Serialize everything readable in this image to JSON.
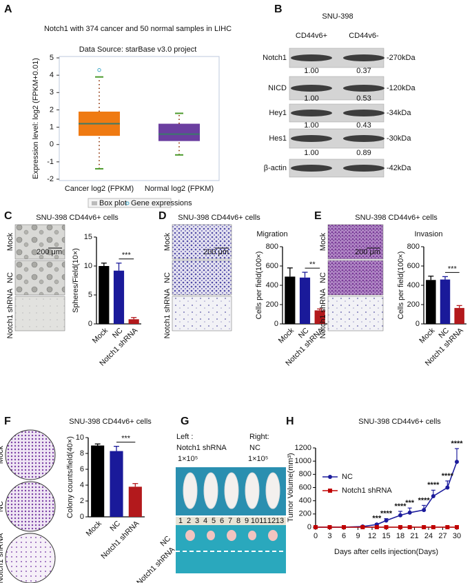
{
  "panel_labels": [
    "A",
    "B",
    "C",
    "D",
    "E",
    "F",
    "G",
    "H"
  ],
  "chart_data": [
    {
      "type": "box",
      "title": "Notch1 with 374 cancer and 50 normal samples in LIHC",
      "subtitle": "Data Source: starBase v3.0 project",
      "ylabel": "Expression level: log2 (FPKM+0.01)",
      "categories": [
        "Cancer log2 (FPKM)",
        "Normal log2 (FPKM)"
      ],
      "boxes": [
        {
          "low": -1.4,
          "q1": 0.5,
          "median": 1.2,
          "q3": 1.9,
          "high": 3.9,
          "color": "#ef7a12"
        },
        {
          "low": -0.6,
          "q1": 0.2,
          "median": 0.6,
          "q3": 1.2,
          "high": 1.8,
          "color": "#6b3fa0"
        }
      ],
      "outliers": [
        [
          4.3
        ],
        []
      ],
      "ylim": [
        -2,
        5
      ],
      "yticks": [
        -2,
        -1,
        0,
        1,
        2,
        3,
        4,
        5
      ],
      "legend": [
        "Box plot",
        "Gene expressions"
      ]
    },
    {
      "type": "bar",
      "title": "SNU-398 CD44v6+ cells",
      "image_labels": [
        "Mock",
        "NC",
        "Notch1 shRNA"
      ],
      "scale_bar": "200 μm",
      "ylabel": "Spheres/Field(10×)",
      "categories": [
        "Mock",
        "NC",
        "Notch1 shRNA"
      ],
      "values": [
        10,
        9.2,
        0.8
      ],
      "errors": [
        0.5,
        1.3,
        0.3
      ],
      "colors": [
        "#000000",
        "#1a1a9a",
        "#b3191c"
      ],
      "ylim": [
        0,
        15
      ],
      "yticks": [
        0,
        5,
        10,
        15
      ],
      "significance": "***"
    },
    {
      "type": "bar",
      "title": "SNU-398 CD44v6+ cells",
      "annotation": "Migration",
      "image_labels": [
        "Mock",
        "NC",
        "Notch1 shRNA"
      ],
      "scale_bar": "200 μm",
      "ylabel": "Cells per field(100×)",
      "categories": [
        "Mock",
        "NC",
        "Notch1 shRNA"
      ],
      "values": [
        490,
        480,
        140
      ],
      "errors": [
        90,
        55,
        15
      ],
      "colors": [
        "#000000",
        "#1a1a9a",
        "#b3191c"
      ],
      "ylim": [
        0,
        800
      ],
      "yticks": [
        0,
        200,
        400,
        600,
        800
      ],
      "significance": "**"
    },
    {
      "type": "bar",
      "title": "SNU-398 CD44v6+ cells",
      "annotation": "Invasion",
      "image_labels": [
        "Mock",
        "NC",
        "Notch1 shRNA"
      ],
      "scale_bar": "200 μm",
      "ylabel": "Cells per field(100×)",
      "categories": [
        "Mock",
        "NC",
        "Notch1 shRNA"
      ],
      "values": [
        455,
        460,
        165
      ],
      "errors": [
        40,
        30,
        25
      ],
      "colors": [
        "#000000",
        "#1a1a9a",
        "#b3191c"
      ],
      "ylim": [
        0,
        800
      ],
      "yticks": [
        0,
        200,
        400,
        600,
        800
      ],
      "significance": "***"
    },
    {
      "type": "bar",
      "title": "SNU-398 CD44v6+ cells",
      "image_labels": [
        "Mock",
        "NC",
        "Notch1 shRNA"
      ],
      "ylabel": "Colony counts/field(40×)",
      "categories": [
        "Mock",
        "NC",
        "Notch1 shRNA"
      ],
      "values": [
        9.0,
        8.3,
        3.8
      ],
      "errors": [
        0.2,
        0.6,
        0.4
      ],
      "colors": [
        "#000000",
        "#1a1a9a",
        "#b3191c"
      ],
      "ylim": [
        0,
        10
      ],
      "yticks": [
        0,
        2,
        4,
        6,
        8,
        10
      ],
      "significance": "***"
    },
    {
      "type": "line",
      "title": "SNU-398 CD44v6+ cells",
      "xlabel": "Days after cells injection(Days)",
      "ylabel": "Tumor Volume(mm³)",
      "x": [
        0,
        3,
        6,
        10,
        13,
        15,
        18,
        20,
        23,
        25,
        28,
        30
      ],
      "series": [
        {
          "name": "NC",
          "color": "#1c1c9c",
          "marker": "circle",
          "values": [
            0,
            0,
            0,
            10,
            40,
            100,
            180,
            220,
            260,
            470,
            600,
            990
          ],
          "errors": [
            0,
            0,
            0,
            5,
            15,
            30,
            60,
            70,
            70,
            90,
            100,
            200
          ]
        },
        {
          "name": "Notch1 shRNA",
          "color": "#c00000",
          "marker": "square",
          "values": [
            0,
            0,
            0,
            0,
            0,
            0,
            0,
            0,
            0,
            0,
            0,
            0
          ]
        }
      ],
      "significance": [
        null,
        null,
        null,
        null,
        "***",
        "****",
        "****",
        "***",
        "****",
        "****",
        "****",
        "****"
      ],
      "xlim": [
        0,
        30
      ],
      "xticks": [
        0,
        3,
        6,
        9,
        12,
        15,
        18,
        21,
        24,
        27,
        30
      ],
      "ylim": [
        0,
        1200
      ],
      "yticks": [
        0,
        200,
        400,
        600,
        800,
        1000,
        1200
      ],
      "legend": "upper left"
    }
  ],
  "western_blot": {
    "title": "SNU-398",
    "columns": [
      "CD44v6+",
      "CD44v6-"
    ],
    "rows": [
      {
        "protein": "Notch1",
        "size": "-270kDa",
        "quant": [
          "1.00",
          "0.37"
        ]
      },
      {
        "protein": "NICD",
        "size": "-120kDa",
        "quant": [
          "1.00",
          "0.53"
        ]
      },
      {
        "protein": "Hey1",
        "size": "-34kDa",
        "quant": [
          "1.00",
          "0.43"
        ]
      },
      {
        "protein": "Hes1",
        "size": "-30kDa",
        "quant": [
          "1.00",
          "0.89"
        ]
      },
      {
        "protein": "β-actin",
        "size": "-42kDa"
      }
    ]
  },
  "xenograft": {
    "left": [
      "Left :",
      "Notch1 shRNA"
    ],
    "right": [
      "Right:",
      "NC"
    ],
    "cells": "1×10⁵",
    "ruler": [
      "1",
      "2",
      "3",
      "4",
      "5",
      "6",
      "7",
      "8",
      "9",
      "10",
      "11",
      "12",
      "13"
    ],
    "rows": [
      "NC",
      "Notch1 shRNA"
    ]
  }
}
